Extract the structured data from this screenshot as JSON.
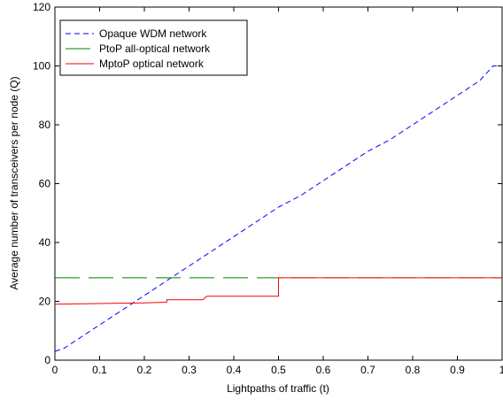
{
  "chart_data": {
    "type": "line",
    "title": "",
    "xlabel": "Lightpaths of traffic (t)",
    "ylabel": "Average number of transceivers per node (Q)",
    "xlim": [
      0,
      1
    ],
    "ylim": [
      0,
      120
    ],
    "x_ticks": [
      "0",
      "0.1",
      "0.2",
      "0.3",
      "0.4",
      "0.5",
      "0.6",
      "0.7",
      "0.8",
      "0.9",
      "1"
    ],
    "y_ticks": [
      "0",
      "20",
      "40",
      "60",
      "80",
      "100",
      "120"
    ],
    "grid": false,
    "legend_position": "top-left",
    "series": [
      {
        "name": "Opaque WDM network",
        "color": "#0000ff",
        "style": "dashed",
        "x": [
          0,
          0.02,
          0.05,
          0.1,
          0.15,
          0.2,
          0.25,
          0.3,
          0.35,
          0.4,
          0.45,
          0.5,
          0.55,
          0.6,
          0.65,
          0.7,
          0.75,
          0.8,
          0.85,
          0.9,
          0.95,
          0.98,
          1.0
        ],
        "y": [
          3,
          4,
          7,
          12,
          17,
          22,
          27,
          32,
          37,
          42,
          47,
          52,
          56,
          61,
          66,
          71,
          75,
          80,
          85,
          90,
          95,
          100,
          100
        ]
      },
      {
        "name": "PtoP all-optical network",
        "color": "#008000",
        "style": "long-dashed",
        "x": [
          0,
          1
        ],
        "y": [
          28,
          28
        ]
      },
      {
        "name": "MptoP optical network",
        "color": "#ff0000",
        "style": "solid",
        "x": [
          0,
          0.2,
          0.25,
          0.25,
          0.33,
          0.34,
          0.5,
          0.5,
          1.0
        ],
        "y": [
          19,
          19.5,
          19.7,
          20.5,
          20.5,
          21.7,
          21.7,
          28,
          28
        ]
      }
    ]
  }
}
